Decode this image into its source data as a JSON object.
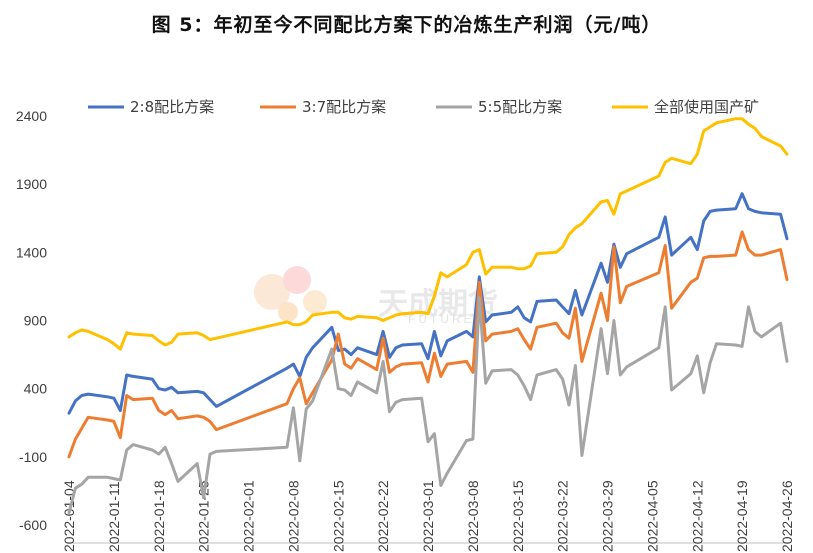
{
  "title": "图 5：年初至今不同配比方案下的冶炼生产利润（元/吨）",
  "watermark": {
    "cn": "天成期货",
    "en": "FUTURES"
  },
  "chart_data": {
    "type": "line",
    "title": "图 5：年初至今不同配比方案下的冶炼生产利润（元/吨）",
    "xlabel": "",
    "ylabel": "",
    "ylim": [
      -600,
      2400
    ],
    "yticks": [
      2400,
      1900,
      1400,
      900,
      400,
      -100,
      -600
    ],
    "xlim": [
      "2022-01-04",
      "2022-04-26"
    ],
    "xticks": [
      "2022-01-04",
      "2022-01-11",
      "2022-01-18",
      "2022-01-25",
      "2022-02-01",
      "2022-02-08",
      "2022-02-15",
      "2022-02-22",
      "2022-03-01",
      "2022-03-08",
      "2022-03-15",
      "2022-03-22",
      "2022-03-29",
      "2022-04-05",
      "2022-04-12",
      "2022-04-19",
      "2022-04-26"
    ],
    "grid": false,
    "legend_position": "top",
    "x": [
      "2022-01-04",
      "2022-01-05",
      "2022-01-06",
      "2022-01-07",
      "2022-01-10",
      "2022-01-11",
      "2022-01-12",
      "2022-01-13",
      "2022-01-14",
      "2022-01-17",
      "2022-01-18",
      "2022-01-19",
      "2022-01-20",
      "2022-01-21",
      "2022-01-24",
      "2022-01-25",
      "2022-01-26",
      "2022-01-27",
      "2022-02-07",
      "2022-02-08",
      "2022-02-09",
      "2022-02-10",
      "2022-02-11",
      "2022-02-14",
      "2022-02-15",
      "2022-02-16",
      "2022-02-17",
      "2022-02-18",
      "2022-02-21",
      "2022-02-22",
      "2022-02-23",
      "2022-02-24",
      "2022-02-25",
      "2022-02-28",
      "2022-03-01",
      "2022-03-02",
      "2022-03-03",
      "2022-03-04",
      "2022-03-07",
      "2022-03-08",
      "2022-03-09",
      "2022-03-10",
      "2022-03-11",
      "2022-03-14",
      "2022-03-15",
      "2022-03-16",
      "2022-03-17",
      "2022-03-18",
      "2022-03-21",
      "2022-03-22",
      "2022-03-23",
      "2022-03-24",
      "2022-03-25",
      "2022-03-28",
      "2022-03-29",
      "2022-03-30",
      "2022-03-31",
      "2022-04-01",
      "2022-04-06",
      "2022-04-07",
      "2022-04-08",
      "2022-04-11",
      "2022-04-12",
      "2022-04-13",
      "2022-04-14",
      "2022-04-15",
      "2022-04-18",
      "2022-04-19",
      "2022-04-20",
      "2022-04-21",
      "2022-04-22",
      "2022-04-25",
      "2022-04-26"
    ],
    "series": [
      {
        "name": "2:8配比方案",
        "color": "#4472C4",
        "values": [
          220,
          310,
          350,
          360,
          340,
          330,
          240,
          500,
          490,
          470,
          400,
          390,
          410,
          370,
          380,
          370,
          320,
          270,
          550,
          580,
          490,
          630,
          700,
          850,
          680,
          690,
          650,
          700,
          650,
          820,
          630,
          700,
          720,
          730,
          620,
          820,
          640,
          750,
          820,
          780,
          1220,
          890,
          940,
          960,
          1000,
          920,
          890,
          1040,
          1050,
          1000,
          950,
          1120,
          940,
          1320,
          1180,
          1460,
          1290,
          1390,
          1510,
          1660,
          1380,
          1510,
          1420,
          1630,
          1700,
          1710,
          1720,
          1830,
          1720,
          1700,
          1690,
          1680,
          1500
        ]
      },
      {
        "name": "3:7配比方案",
        "color": "#ED7D31",
        "values": [
          -100,
          30,
          110,
          190,
          170,
          160,
          40,
          350,
          320,
          330,
          240,
          210,
          240,
          180,
          200,
          190,
          160,
          100,
          290,
          400,
          480,
          290,
          370,
          610,
          800,
          580,
          550,
          620,
          540,
          770,
          520,
          560,
          580,
          590,
          450,
          660,
          490,
          580,
          600,
          520,
          1180,
          750,
          800,
          820,
          840,
          760,
          690,
          850,
          880,
          810,
          770,
          990,
          600,
          1100,
          900,
          1440,
          1030,
          1150,
          1250,
          1450,
          990,
          1180,
          1210,
          1360,
          1370,
          1370,
          1380,
          1550,
          1420,
          1380,
          1380,
          1420,
          1200
        ]
      },
      {
        "name": "5:5配比方案",
        "color": "#A5A5A5",
        "values": [
          -510,
          -330,
          -300,
          -250,
          -250,
          -260,
          -270,
          -50,
          -10,
          -50,
          -80,
          -30,
          -150,
          -280,
          -150,
          -400,
          -80,
          -60,
          -30,
          260,
          -130,
          250,
          310,
          690,
          400,
          390,
          350,
          450,
          370,
          600,
          230,
          300,
          320,
          330,
          10,
          70,
          -310,
          -220,
          20,
          30,
          1070,
          440,
          530,
          540,
          500,
          420,
          320,
          500,
          540,
          470,
          280,
          570,
          -90,
          840,
          510,
          900,
          500,
          560,
          700,
          1000,
          390,
          510,
          640,
          370,
          590,
          730,
          720,
          710,
          1000,
          820,
          780,
          880,
          600
        ]
      },
      {
        "name": "全部使用国产矿",
        "color": "#FFC000",
        "values": [
          780,
          810,
          830,
          820,
          760,
          730,
          690,
          810,
          800,
          790,
          750,
          720,
          740,
          800,
          810,
          790,
          760,
          770,
          890,
          870,
          870,
          890,
          940,
          960,
          960,
          920,
          910,
          930,
          920,
          900,
          920,
          940,
          950,
          960,
          950,
          1080,
          1250,
          1220,
          1310,
          1400,
          1420,
          1240,
          1290,
          1290,
          1280,
          1280,
          1300,
          1390,
          1400,
          1440,
          1530,
          1580,
          1610,
          1770,
          1780,
          1680,
          1830,
          1850,
          1960,
          2060,
          2090,
          2050,
          2120,
          2290,
          2320,
          2350,
          2380,
          2380,
          2340,
          2310,
          2250,
          2180,
          2120
        ]
      }
    ]
  }
}
